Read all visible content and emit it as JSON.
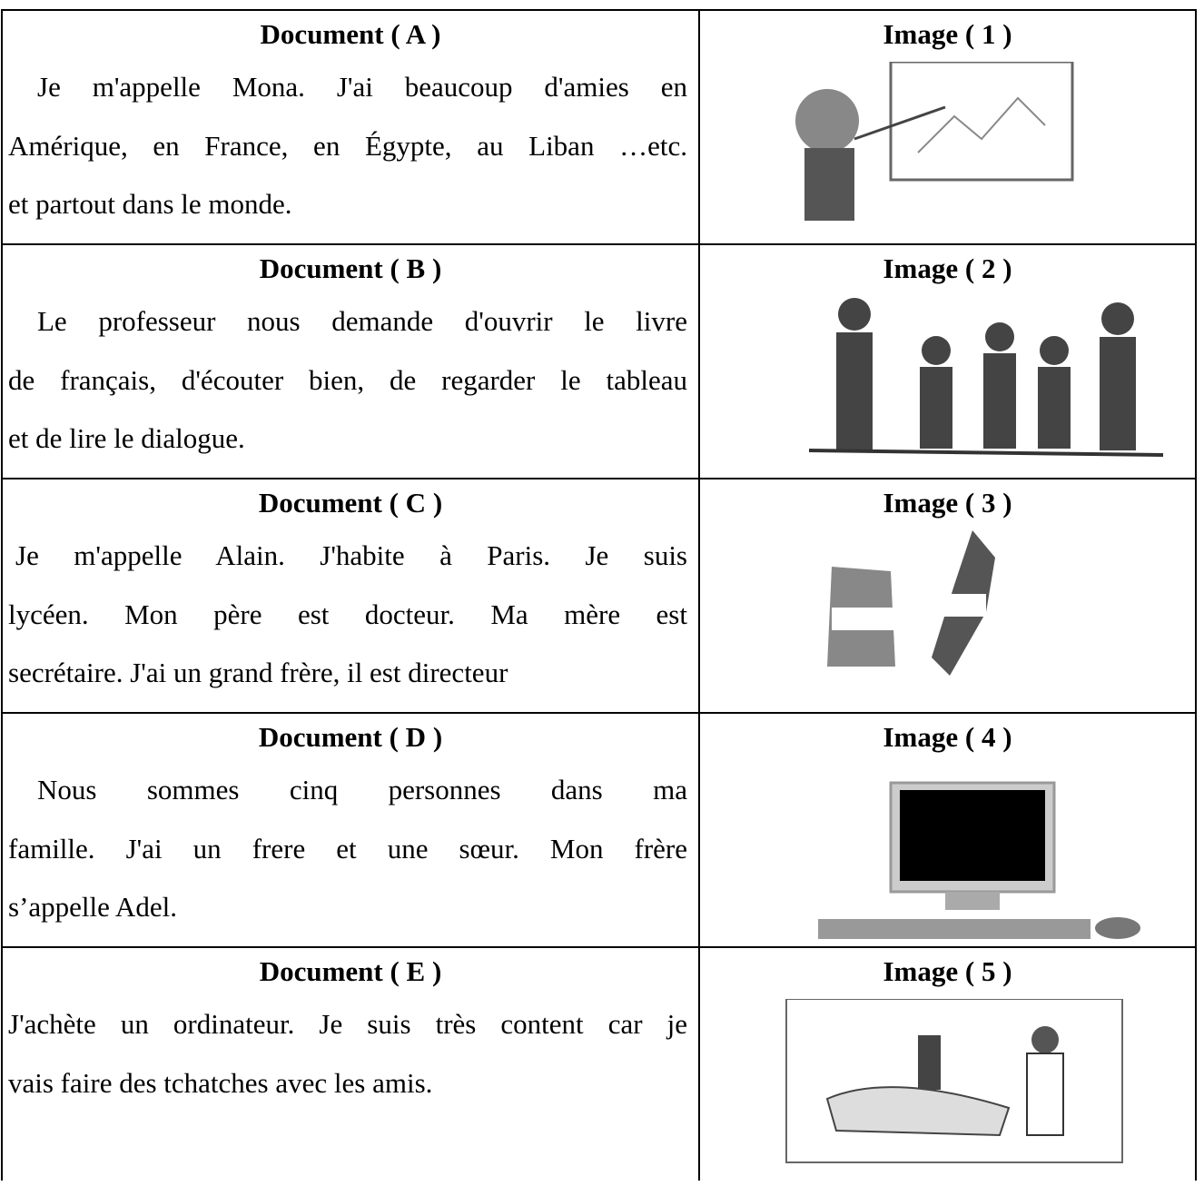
{
  "rows": [
    {
      "document": "Document ( A )",
      "lines": [
        "Je m'appelle Mona. J'ai beaucoup d'amies en",
        "Amérique, en France, en Égypte, au Liban …etc.",
        "et partout dans le monde."
      ],
      "image": "Image ( 1 )"
    },
    {
      "document": "Document ( B )",
      "lines": [
        "Le professeur nous demande d'ouvrir le livre",
        "de français, d'écouter bien, de regarder le tableau",
        "et de lire le dialogue."
      ],
      "image": "Image ( 2 )"
    },
    {
      "document": "Document ( C )",
      "lines": [
        "Je m'appelle Alain. J'habite à Paris. Je suis",
        "lycéen. Mon père est docteur. Ma mère est",
        "secrétaire. J'ai un grand frère, il est directeur"
      ],
      "image": "Image ( 3 )"
    },
    {
      "document": "Document ( D )",
      "lines": [
        "Nous sommes cinq personnes dans ma",
        "famille. J'ai un frere et une sœur. Mon frère",
        "s’appelle Adel."
      ],
      "image": "Image ( 4 )"
    },
    {
      "document": "Document ( E )",
      "lines": [
        "J'achète un ordinateur. Je suis très content car je",
        "vais faire des tchatches avec les amis."
      ],
      "image": "Image ( 5 )"
    }
  ]
}
